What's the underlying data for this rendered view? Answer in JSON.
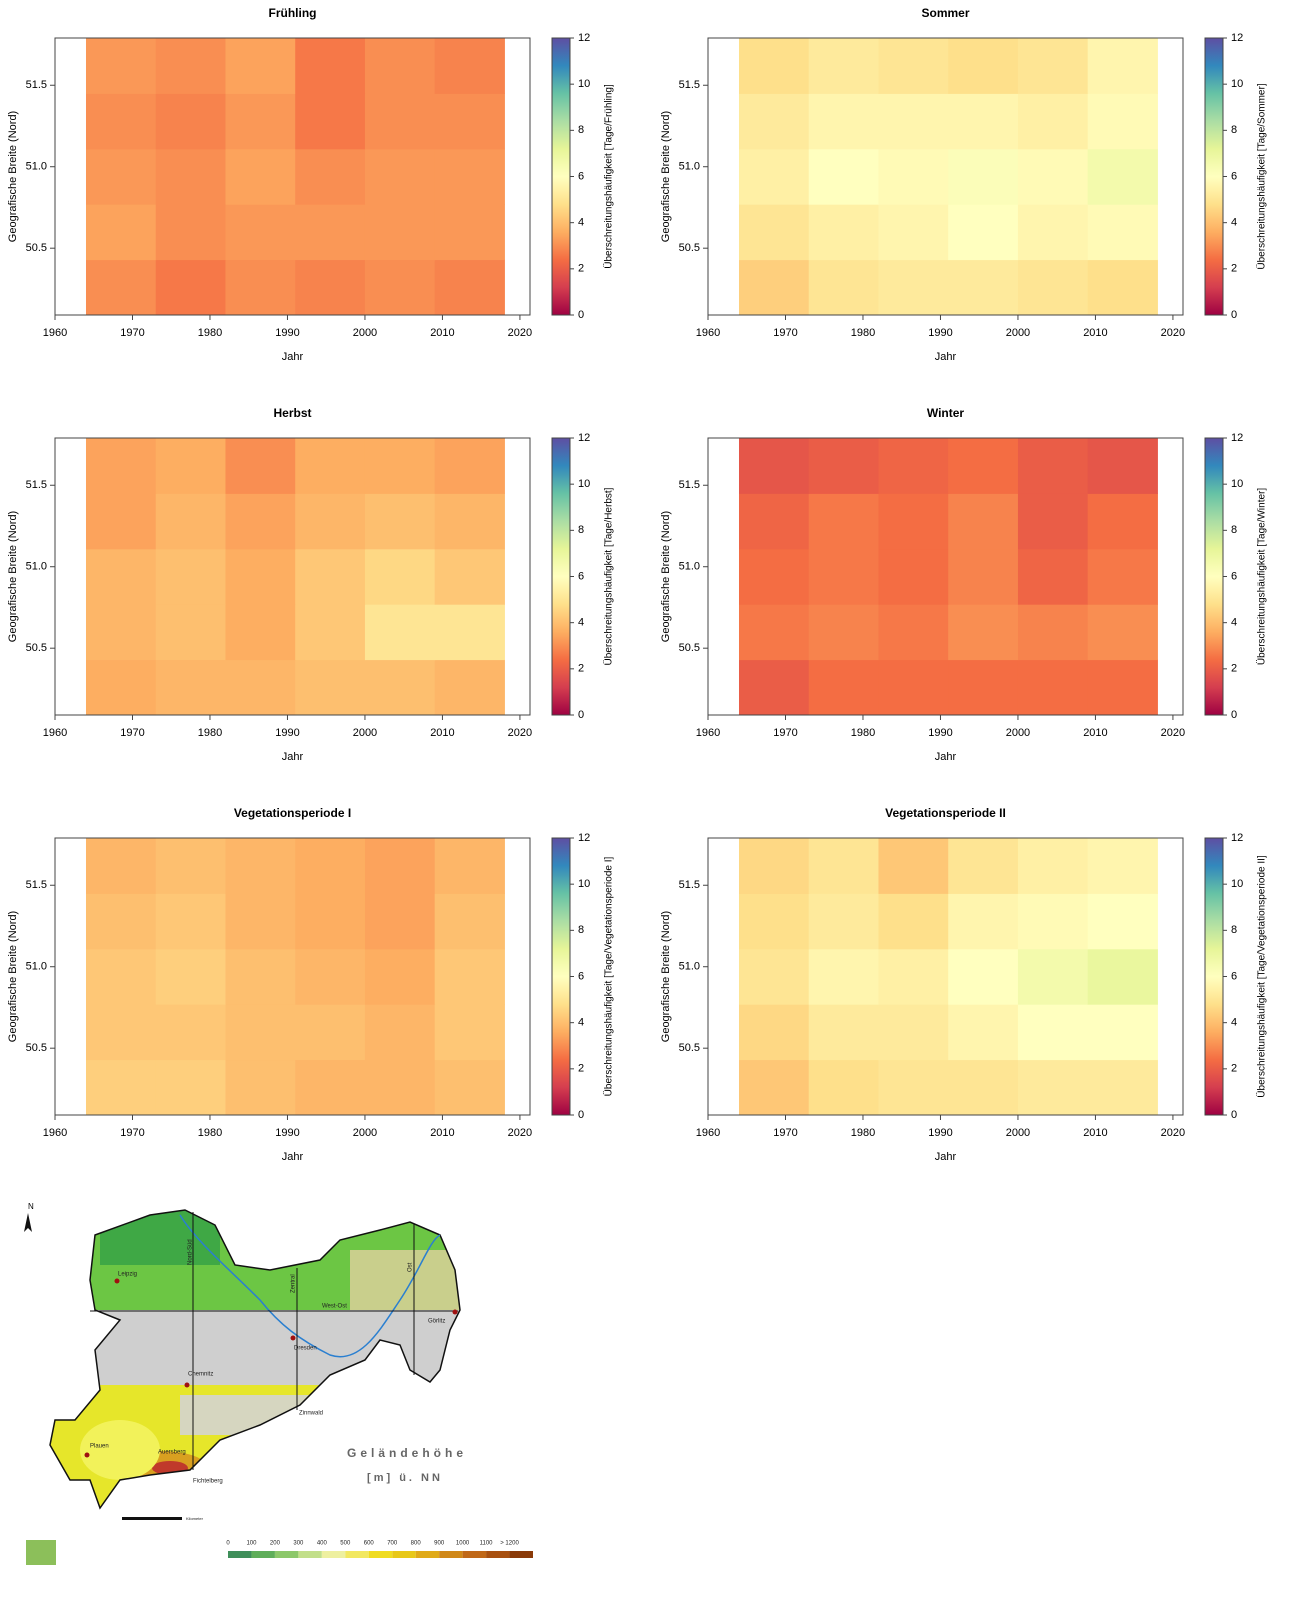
{
  "chart_data": [
    {
      "type": "heatmap",
      "title": "Frühling",
      "xlabel": "Jahr",
      "ylabel": "Geografische Breite (Nord)",
      "colorbar_label": "Überschreitungshäufigkeit [Tage/Frühling]",
      "colormap": "Spectral",
      "clim": [
        0,
        12
      ],
      "cticks": [
        0,
        2,
        4,
        6,
        8,
        10,
        12
      ],
      "xlim": [
        1960,
        2021.3
      ],
      "ylim": [
        50.09,
        51.79
      ],
      "xticks": [
        1960,
        1970,
        1980,
        1990,
        2000,
        2010,
        2020
      ],
      "yticks": [
        50.5,
        {
          "value": 51,
          "label": "51.0"
        },
        51.5
      ],
      "x_edges": [
        1964,
        1973,
        1982,
        1991,
        2000,
        2009,
        2018
      ],
      "y_edges": [
        50.09,
        50.43,
        50.77,
        51.11,
        51.45,
        51.79
      ],
      "z": [
        [
          3,
          2.6,
          3,
          2.8,
          3,
          2.8
        ],
        [
          3.4,
          3,
          3.2,
          3.2,
          3.2,
          3.2
        ],
        [
          3.2,
          3,
          3.4,
          3,
          3.2,
          3.2
        ],
        [
          3,
          2.8,
          3.2,
          2.6,
          3,
          3
        ],
        [
          3.2,
          3,
          3.4,
          2.6,
          3,
          2.8
        ]
      ]
    },
    {
      "type": "heatmap",
      "title": "Sommer",
      "xlabel": "Jahr",
      "ylabel": "Geografische Breite (Nord)",
      "colorbar_label": "Überschreitungshäufigkeit [Tage/Sommer]",
      "colormap": "Spectral",
      "clim": [
        0,
        12
      ],
      "cticks": [
        0,
        2,
        4,
        6,
        8,
        10,
        12
      ],
      "xlim": [
        1960,
        2021.3
      ],
      "ylim": [
        50.09,
        51.79
      ],
      "xticks": [
        1960,
        1970,
        1980,
        1990,
        2000,
        2010,
        2020
      ],
      "yticks": [
        50.5,
        {
          "value": 51,
          "label": "51.0"
        },
        51.5
      ],
      "x_edges": [
        1964,
        1973,
        1982,
        1991,
        2000,
        2009,
        2018
      ],
      "y_edges": [
        50.09,
        50.43,
        50.77,
        51.11,
        51.45,
        51.79
      ],
      "z": [
        [
          4.4,
          5,
          5.2,
          5.2,
          5,
          4.8
        ],
        [
          5,
          5.4,
          5.6,
          6,
          5.6,
          5.8
        ],
        [
          5.4,
          6,
          5.8,
          6.2,
          5.8,
          6.6
        ],
        [
          5.2,
          5.6,
          5.6,
          5.6,
          5.4,
          5.8
        ],
        [
          4.8,
          5.2,
          5,
          4.8,
          5,
          5.6
        ]
      ]
    },
    {
      "type": "heatmap",
      "title": "Herbst",
      "xlabel": "Jahr",
      "ylabel": "Geografische Breite (Nord)",
      "colorbar_label": "Überschreitungshäufigkeit [Tage/Herbst]",
      "colormap": "Spectral",
      "clim": [
        0,
        12
      ],
      "cticks": [
        0,
        2,
        4,
        6,
        8,
        10,
        12
      ],
      "xlim": [
        1960,
        2021.3
      ],
      "ylim": [
        50.09,
        51.79
      ],
      "xticks": [
        1960,
        1970,
        1980,
        1990,
        2000,
        2010,
        2020
      ],
      "yticks": [
        50.5,
        {
          "value": 51,
          "label": "51.0"
        },
        51.5
      ],
      "x_edges": [
        1964,
        1973,
        1982,
        1991,
        2000,
        2009,
        2018
      ],
      "y_edges": [
        50.09,
        50.43,
        50.77,
        51.11,
        51.45,
        51.79
      ],
      "z": [
        [
          3.6,
          3.8,
          3.8,
          4,
          4,
          3.8
        ],
        [
          3.8,
          4,
          3.6,
          4.2,
          5,
          5
        ],
        [
          3.8,
          4,
          3.6,
          4.2,
          4.6,
          4.2
        ],
        [
          3.4,
          3.8,
          3.4,
          3.8,
          4,
          3.8
        ],
        [
          3.4,
          3.6,
          3,
          3.6,
          3.6,
          3.4
        ]
      ]
    },
    {
      "type": "heatmap",
      "title": "Winter",
      "xlabel": "Jahr",
      "ylabel": "Geografische Breite (Nord)",
      "colorbar_label": "Überschreitungshäufigkeit [Tage/Winter]",
      "colormap": "Spectral",
      "clim": [
        0,
        12
      ],
      "cticks": [
        0,
        2,
        4,
        6,
        8,
        10,
        12
      ],
      "xlim": [
        1960,
        2021.3
      ],
      "ylim": [
        50.09,
        51.79
      ],
      "xticks": [
        1960,
        1970,
        1980,
        1990,
        2000,
        2010,
        2020
      ],
      "yticks": [
        50.5,
        {
          "value": 51,
          "label": "51.0"
        },
        51.5
      ],
      "x_edges": [
        1964,
        1973,
        1982,
        1991,
        2000,
        2009,
        2018
      ],
      "y_edges": [
        50.09,
        50.43,
        50.77,
        51.11,
        51.45,
        51.79
      ],
      "z": [
        [
          2,
          2.4,
          2.4,
          2.4,
          2.4,
          2.4
        ],
        [
          2.6,
          2.8,
          2.6,
          3,
          2.8,
          3
        ],
        [
          2.4,
          2.6,
          2.4,
          2.8,
          2.2,
          2.6
        ],
        [
          2.2,
          2.6,
          2.4,
          2.8,
          2,
          2.4
        ],
        [
          1.8,
          2,
          2.2,
          2.4,
          2,
          1.8
        ]
      ]
    },
    {
      "type": "heatmap",
      "title": "Vegetationsperiode I",
      "xlabel": "Jahr",
      "ylabel": "Geografische Breite (Nord)",
      "colorbar_label": "Überschreitungshäufigkeit [Tage/Vegetationsperiode I]",
      "colormap": "Spectral",
      "clim": [
        0,
        12
      ],
      "cticks": [
        0,
        2,
        4,
        6,
        8,
        10,
        12
      ],
      "xlim": [
        1960,
        2021.3
      ],
      "ylim": [
        50.09,
        51.79
      ],
      "xticks": [
        1960,
        1970,
        1980,
        1990,
        2000,
        2010,
        2020
      ],
      "yticks": [
        50.5,
        {
          "value": 51,
          "label": "51.0"
        },
        51.5
      ],
      "x_edges": [
        1964,
        1973,
        1982,
        1991,
        2000,
        2009,
        2018
      ],
      "y_edges": [
        50.09,
        50.43,
        50.77,
        51.11,
        51.45,
        51.79
      ],
      "z": [
        [
          4.4,
          4.4,
          4,
          3.8,
          3.8,
          4
        ],
        [
          4.2,
          4.2,
          4,
          4,
          3.8,
          4.2
        ],
        [
          4.2,
          4.4,
          4,
          3.8,
          3.6,
          4.2
        ],
        [
          4,
          4.2,
          3.8,
          3.6,
          3.4,
          4
        ],
        [
          3.8,
          4,
          3.8,
          3.6,
          3.4,
          3.8
        ]
      ]
    },
    {
      "type": "heatmap",
      "title": "Vegetationsperiode II",
      "xlabel": "Jahr",
      "ylabel": "Geografische Breite (Nord)",
      "colorbar_label": "Überschreitungshäufigkeit [Tage/Vegetationsperiode II]",
      "colormap": "Spectral",
      "clim": [
        0,
        12
      ],
      "cticks": [
        0,
        2,
        4,
        6,
        8,
        10,
        12
      ],
      "xlim": [
        1960,
        2021.3
      ],
      "ylim": [
        50.09,
        51.79
      ],
      "xticks": [
        1960,
        1970,
        1980,
        1990,
        2000,
        2010,
        2020
      ],
      "yticks": [
        50.5,
        {
          "value": 51,
          "label": "51.0"
        },
        51.5
      ],
      "x_edges": [
        1964,
        1973,
        1982,
        1991,
        2000,
        2009,
        2018
      ],
      "y_edges": [
        50.09,
        50.43,
        50.77,
        51.11,
        51.45,
        51.79
      ],
      "z": [
        [
          4.2,
          4.8,
          5,
          5,
          5.2,
          5.2
        ],
        [
          4.6,
          5.2,
          5.2,
          5.6,
          6,
          6
        ],
        [
          5,
          5.6,
          5.4,
          6,
          6.6,
          7
        ],
        [
          4.8,
          5.2,
          4.8,
          5.6,
          5.8,
          6
        ],
        [
          4.6,
          5,
          4.2,
          5,
          5.4,
          5.6
        ]
      ]
    }
  ],
  "map": {
    "north": "N",
    "cities": [
      "Leipzig",
      "Dresden",
      "Chemnitz",
      "Plauen",
      "Görlitz",
      "Zinnwald",
      "Auersberg",
      "Fichtelberg"
    ],
    "lines": [
      "Nord-Süd",
      "Zentral",
      "Ost",
      "West-Ost"
    ],
    "title": "Geländehöhe",
    "unit": "[m] ü. NN",
    "scale_unit": "Kilometer",
    "legend": [
      "0",
      "100",
      "200",
      "300",
      "400",
      "500",
      "600",
      "700",
      "800",
      "900",
      "1000",
      "1100",
      "> 1200"
    ]
  }
}
